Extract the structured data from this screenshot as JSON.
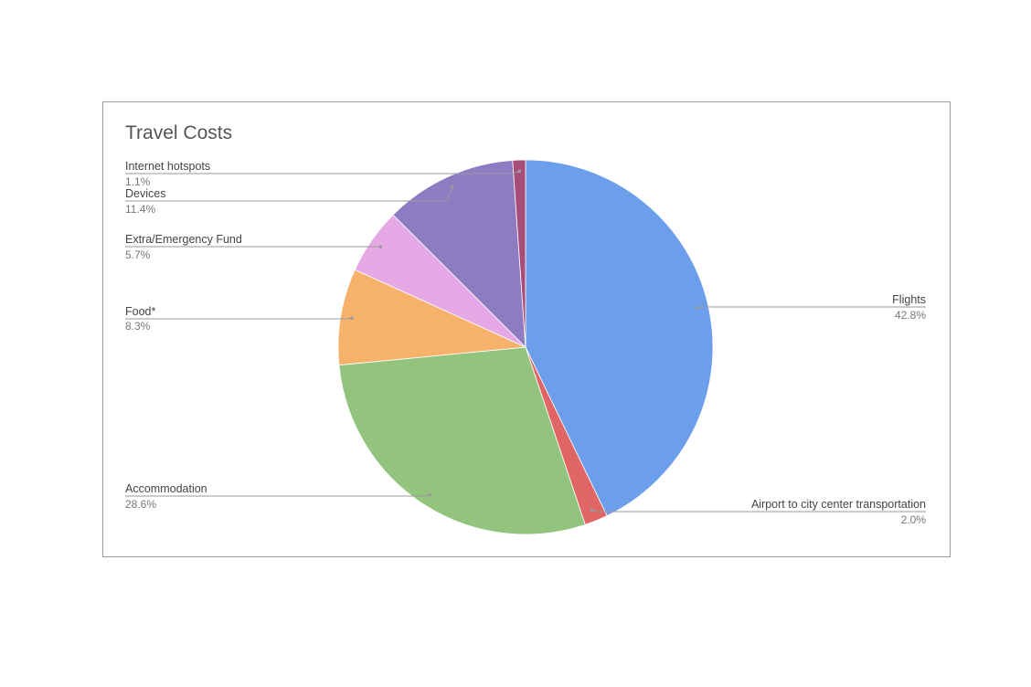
{
  "chart_data": {
    "type": "pie",
    "title": "Travel Costs",
    "slices": [
      {
        "label": "Flights",
        "value": 42.8,
        "display": "42.8%",
        "color": "#6d9eeb"
      },
      {
        "label": "Airport to city center transportation",
        "value": 2.0,
        "display": "2.0%",
        "color": "#e06666"
      },
      {
        "label": "Accommodation",
        "value": 28.6,
        "display": "28.6%",
        "color": "#93c47d"
      },
      {
        "label": "Food*",
        "value": 8.3,
        "display": "8.3%",
        "color": "#f6b26b"
      },
      {
        "label": "Extra/Emergency Fund",
        "value": 5.7,
        "display": "5.7%",
        "color": "#e6a9e6"
      },
      {
        "label": "Devices",
        "value": 11.4,
        "display": "11.4%",
        "color": "#8e7cc3"
      },
      {
        "label": "Internet hotspots",
        "value": 1.1,
        "display": "1.1%",
        "color": "#a64d79"
      }
    ],
    "start_angle": "12 o'clock",
    "direction": "clockwise",
    "labels": "outside with leader lines"
  }
}
